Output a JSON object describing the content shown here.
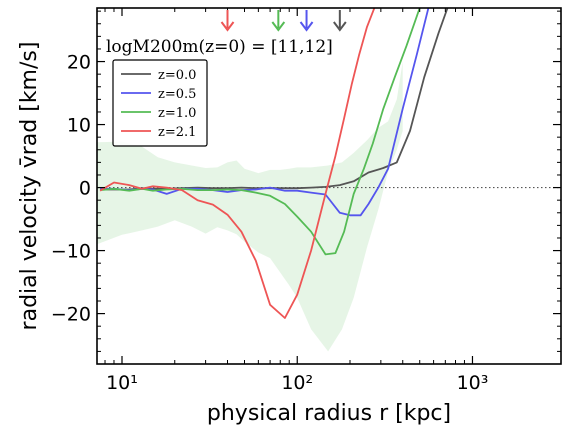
{
  "chart_data": {
    "type": "line",
    "xlabel": "physical radius r [kpc]",
    "ylabel": "radial velocity v̄rad [km/s]",
    "xscale": "log",
    "xlim": [
      7.2,
      3200
    ],
    "ylim": [
      -28,
      28.5
    ],
    "grid": false,
    "x_ticks": [
      10,
      100,
      1000
    ],
    "x_tick_labels": [
      "10¹",
      "10²",
      "10³"
    ],
    "y_ticks": [
      -20,
      -10,
      0,
      10,
      20
    ],
    "y_tick_labels": [
      "−20",
      "−10",
      "0",
      "10",
      "20"
    ],
    "reference_line": {
      "y": 0,
      "style": "dotted",
      "color": "#555555"
    },
    "legend": {
      "title": "logM200m(z=0) = [11,12]",
      "placement": "upper-left"
    },
    "series": [
      {
        "name": "z=0.0",
        "color": "#555555",
        "x": [
          7.5,
          9,
          11,
          13,
          15,
          18,
          22,
          27,
          33,
          40,
          48,
          58,
          70,
          85,
          100,
          120,
          145,
          175,
          210,
          255,
          310,
          370,
          440,
          530,
          640,
          720
        ],
        "y": [
          -0.3,
          -0.3,
          -0.3,
          -0.1,
          -0.2,
          -0.2,
          -0.1,
          0.0,
          -0.1,
          -0.1,
          0.0,
          -0.1,
          -0.1,
          -0.1,
          -0.1,
          0.0,
          0.1,
          0.4,
          1.0,
          2.4,
          3.1,
          4.0,
          9.0,
          17.5,
          24.5,
          28.5
        ]
      },
      {
        "name": "z=0.5",
        "color": "#5555ee",
        "x": [
          7.5,
          9,
          11,
          13,
          15,
          18,
          22,
          27,
          33,
          40,
          48,
          58,
          70,
          85,
          100,
          120,
          145,
          175,
          200,
          230,
          255,
          290,
          330,
          400,
          480,
          560
        ],
        "y": [
          -0.2,
          -0.2,
          -0.4,
          -0.2,
          -0.3,
          -1.0,
          -0.2,
          -0.2,
          -0.4,
          -0.7,
          -0.4,
          -0.3,
          0.0,
          -0.5,
          -0.5,
          -0.8,
          -1.1,
          -4.0,
          -4.4,
          -4.4,
          -2.6,
          0.0,
          3.0,
          12.5,
          21.0,
          28.5
        ]
      },
      {
        "name": "z=1.0",
        "color": "#55bb55",
        "x": [
          7.5,
          9,
          11,
          13,
          15,
          18,
          22,
          27,
          33,
          40,
          48,
          58,
          70,
          85,
          100,
          120,
          145,
          165,
          185,
          210,
          240,
          270,
          310,
          360,
          420,
          500
        ],
        "y": [
          -0.4,
          -0.2,
          -0.5,
          -0.2,
          -0.5,
          -0.3,
          -0.2,
          -0.4,
          -0.4,
          -0.3,
          -0.4,
          -0.8,
          -1.3,
          -2.6,
          -4.6,
          -7.0,
          -10.6,
          -10.4,
          -7.0,
          -1.0,
          3.0,
          7.0,
          12.5,
          17.5,
          22.5,
          28.5
        ]
      },
      {
        "name": "z=2.1",
        "color": "#ee5555",
        "x": [
          7.5,
          9,
          11,
          13,
          15,
          18,
          22,
          27,
          33,
          40,
          48,
          58,
          70,
          85,
          100,
          120,
          145,
          165,
          185,
          205,
          225,
          250,
          280
        ],
        "y": [
          -0.5,
          0.8,
          0.4,
          -0.2,
          0.2,
          0.0,
          -0.4,
          -2.0,
          -2.7,
          -4.3,
          -7.0,
          -11.6,
          -18.6,
          -20.7,
          -17.0,
          -10.0,
          -1.0,
          5.0,
          11.0,
          16.5,
          21.0,
          25.5,
          29.0
        ]
      }
    ],
    "band": {
      "color": "#55bb55",
      "opacity": 0.15,
      "x": [
        7.2,
        10,
        13,
        16,
        20,
        25,
        30,
        35,
        40,
        45,
        50,
        60,
        70,
        80,
        90,
        100,
        120,
        150,
        180,
        210,
        250,
        290,
        330,
        370,
        400
      ],
      "lower": [
        -9.0,
        -7.5,
        -6.8,
        -6.2,
        -5.2,
        -6.2,
        -7.3,
        -6.3,
        -6.8,
        -7.4,
        -8.6,
        -10.3,
        -11.2,
        -13.5,
        -15.5,
        -17.5,
        -22.5,
        -26.0,
        -22.5,
        -17.5,
        -9.5,
        -3.5,
        2.5,
        6.0,
        9.0
      ],
      "upper": [
        7.2,
        7.3,
        6.5,
        4.8,
        4.0,
        3.5,
        3.1,
        3.2,
        4.0,
        4.3,
        3.0,
        2.3,
        2.8,
        2.8,
        3.0,
        3.2,
        3.2,
        3.5,
        4.0,
        5.5,
        7.5,
        9.5,
        10.5,
        14.0,
        20.0
      ]
    },
    "arrows": [
      {
        "series": "z=2.1",
        "x": 40,
        "color": "#ee5555"
      },
      {
        "series": "z=1.0",
        "x": 78,
        "color": "#55bb55"
      },
      {
        "series": "z=0.5",
        "x": 113,
        "color": "#5555ee"
      },
      {
        "series": "z=0.0",
        "x": 175,
        "color": "#555555"
      }
    ]
  }
}
